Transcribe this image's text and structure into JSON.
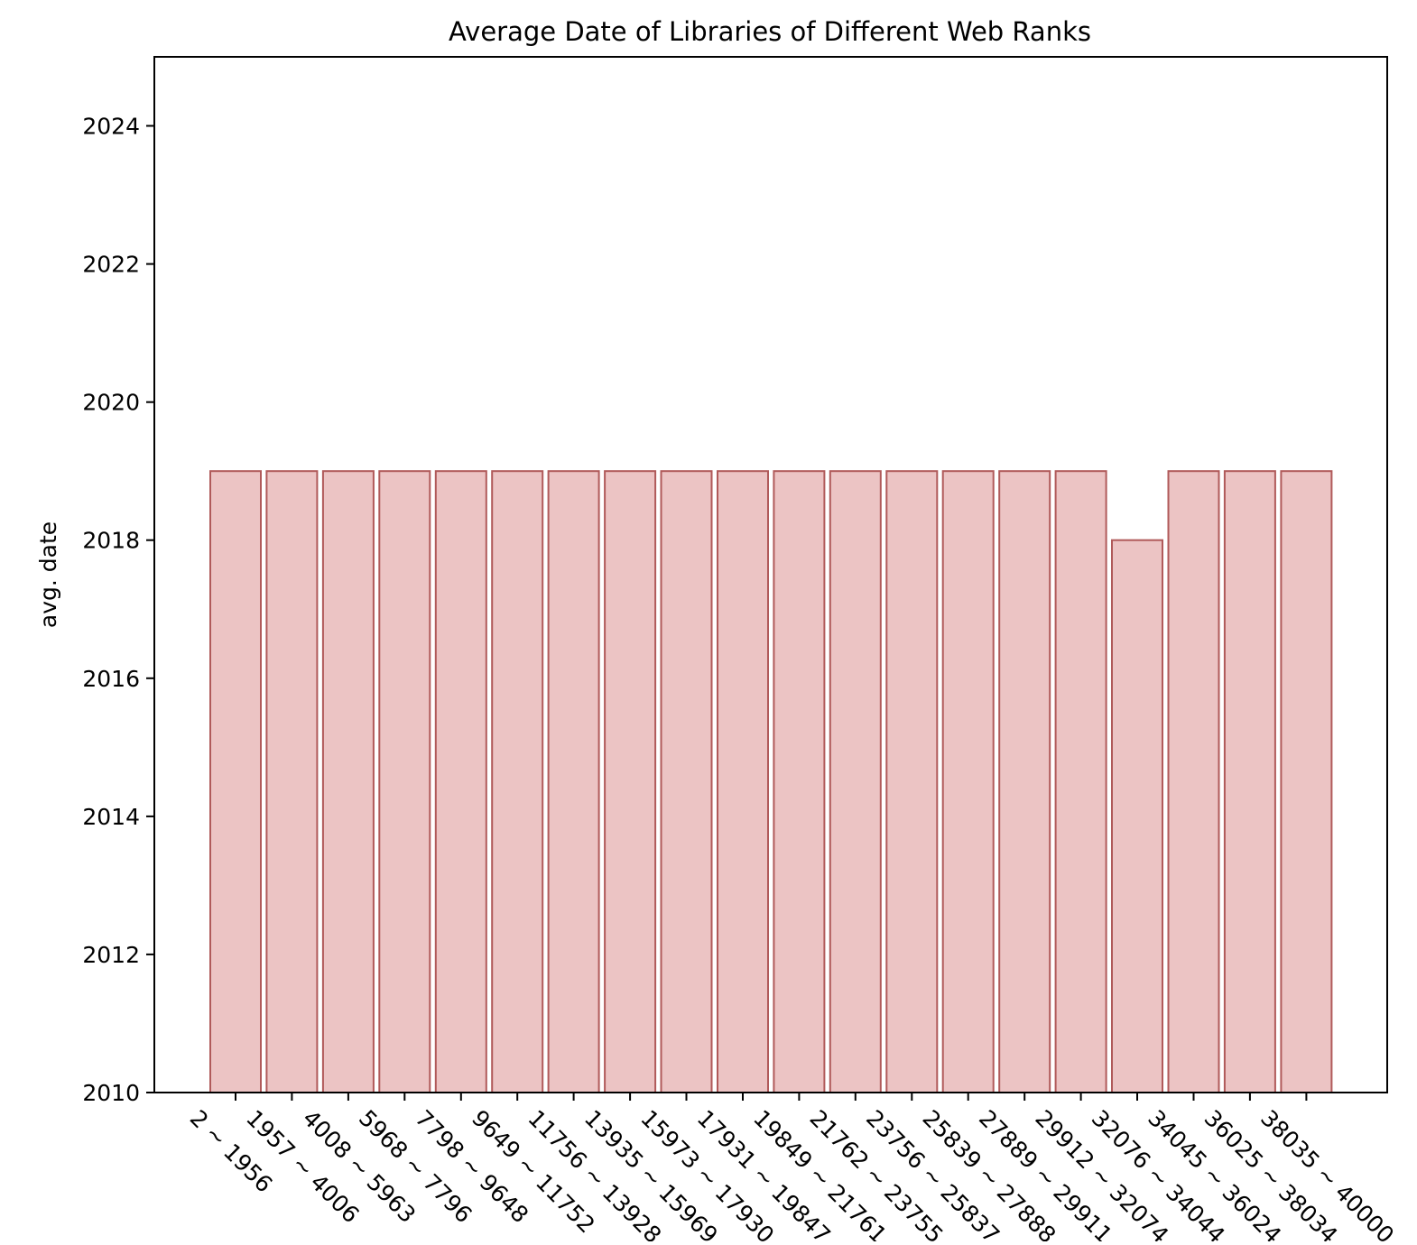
{
  "chart_data": {
    "type": "bar",
    "title": "Average Date of Libraries of Different Web Ranks",
    "xlabel": "",
    "ylabel": "avg. date",
    "ylim": [
      2010,
      2025
    ],
    "yticks": [
      2010,
      2012,
      2014,
      2016,
      2018,
      2020,
      2022,
      2024
    ],
    "categories": [
      "2 ~ 1956",
      "1957 ~ 4006",
      "4008 ~ 5963",
      "5968 ~ 7796",
      "7798 ~ 9648",
      "9649 ~ 11752",
      "11756 ~ 13928",
      "13935 ~ 15969",
      "15973 ~ 17930",
      "17931 ~ 19847",
      "19849 ~ 21761",
      "21762 ~ 23755",
      "23756 ~ 25837",
      "25839 ~ 27888",
      "27889 ~ 29911",
      "29912 ~ 32074",
      "32076 ~ 34044",
      "34045 ~ 36024",
      "36025 ~ 38034",
      "38035 ~ 40000"
    ],
    "values": [
      2019,
      2019,
      2019,
      2019,
      2019,
      2019,
      2019,
      2019,
      2019,
      2019,
      2019,
      2019,
      2019,
      2019,
      2019,
      2019,
      2018,
      2019,
      2019,
      2019
    ],
    "grid": false,
    "bar_color": "#ecc4c4",
    "bar_edge_color": "#b05a5a"
  }
}
